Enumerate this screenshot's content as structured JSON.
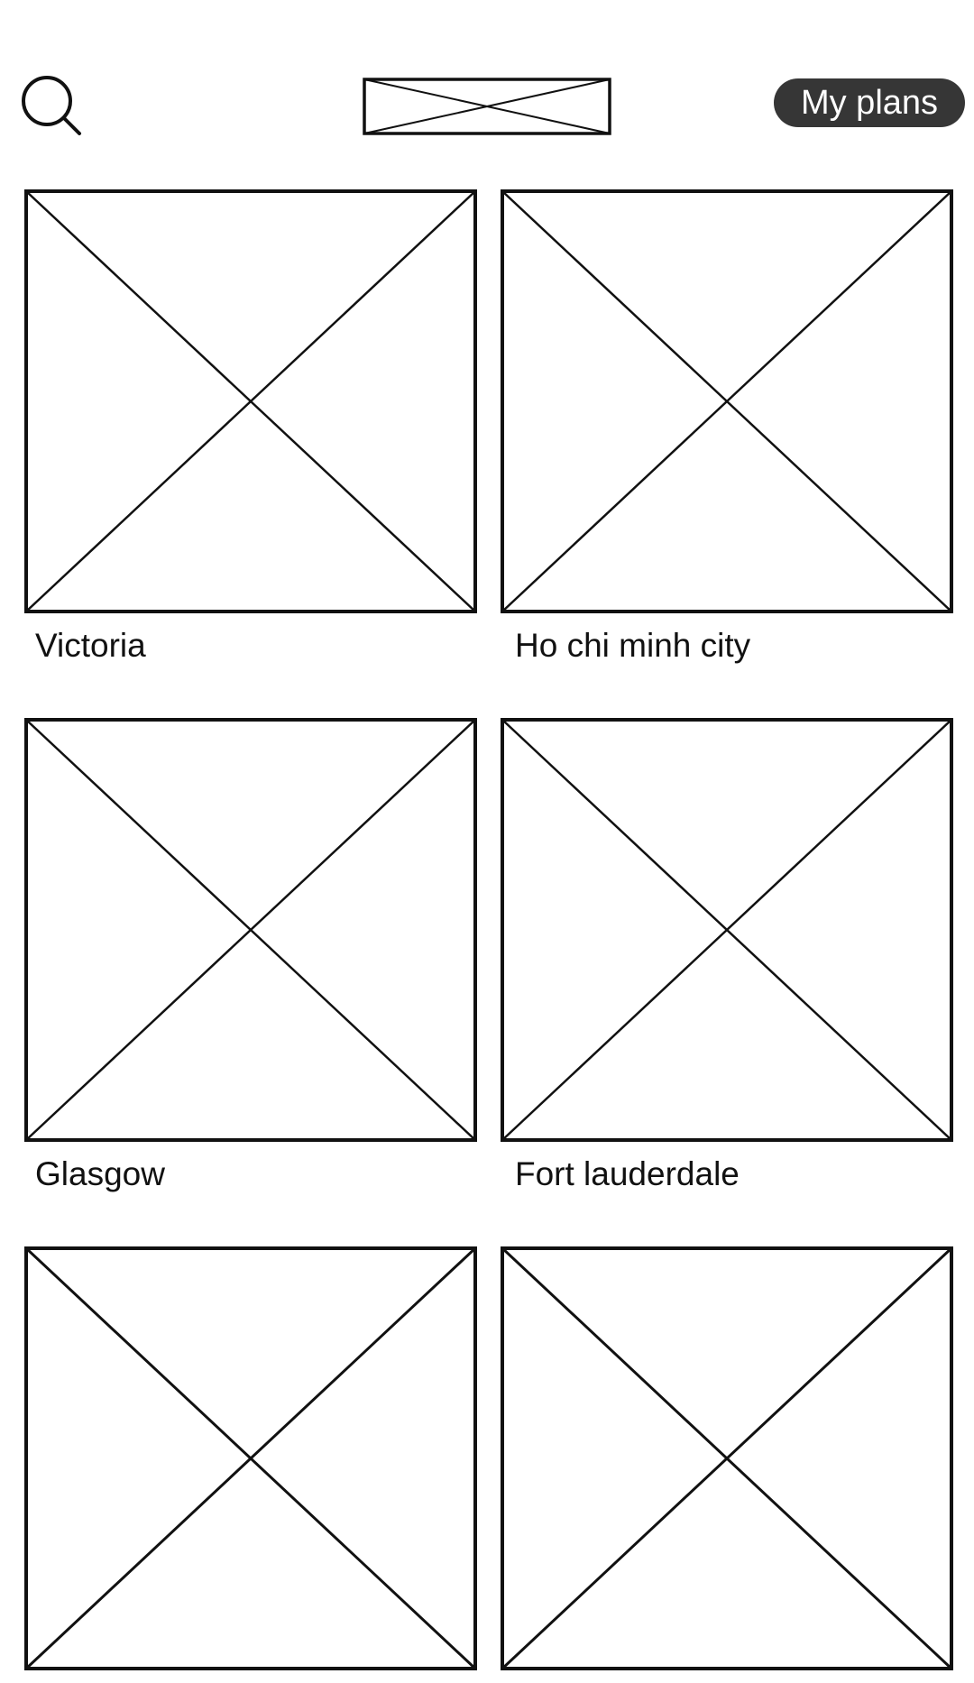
{
  "header": {
    "search_icon": "search-icon",
    "logo_icon": "logo-placeholder-icon",
    "plans_label": "My plans"
  },
  "cities": [
    {
      "name": "Victoria",
      "image_icon": "image-placeholder-icon"
    },
    {
      "name": "Ho chi minh city",
      "image_icon": "image-placeholder-icon"
    },
    {
      "name": "Glasgow",
      "image_icon": "image-placeholder-icon"
    },
    {
      "name": "Fort lauderdale",
      "image_icon": "image-placeholder-icon"
    },
    {
      "name": "",
      "image_icon": "image-placeholder-icon"
    },
    {
      "name": "",
      "image_icon": "image-placeholder-icon"
    }
  ],
  "colors": {
    "plans_button_bg": "#363636",
    "plans_button_text": "#ffffff",
    "stroke": "#111111",
    "background": "#ffffff"
  }
}
